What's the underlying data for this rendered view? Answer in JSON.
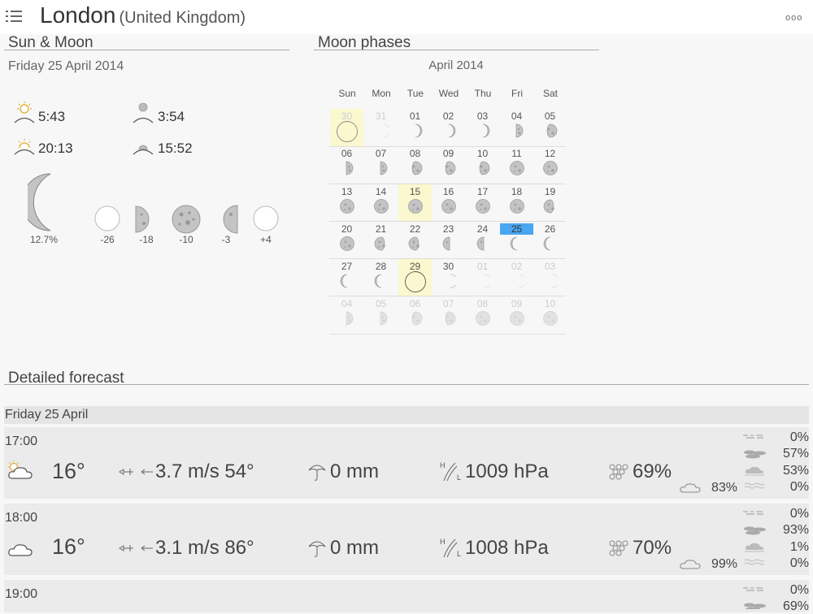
{
  "header": {
    "city": "London",
    "country": "(United Kingdom)",
    "more_label": "ooo"
  },
  "sun_moon": {
    "title": "Sun & Moon",
    "date": "Friday 25 April 2014",
    "sunrise": "5:43",
    "sunset": "20:13",
    "moonrise": "3:54",
    "moonset": "15:52",
    "illumination": "12.7%",
    "phase_offsets": [
      "-26",
      "-18",
      "-10",
      "-3",
      "+4"
    ]
  },
  "moon_phases": {
    "title": "Moon phases",
    "month": "April 2014",
    "weekdays": [
      "Sun",
      "Mon",
      "Tue",
      "Wed",
      "Thu",
      "Fri",
      "Sat"
    ],
    "weeks": [
      [
        "30",
        "31",
        "01",
        "02",
        "03",
        "04",
        "05"
      ],
      [
        "06",
        "07",
        "08",
        "09",
        "10",
        "11",
        "12"
      ],
      [
        "13",
        "14",
        "15",
        "16",
        "17",
        "18",
        "19"
      ],
      [
        "20",
        "21",
        "22",
        "23",
        "24",
        "25",
        "26"
      ],
      [
        "27",
        "28",
        "29",
        "30",
        "01",
        "02",
        "03"
      ],
      [
        "04",
        "05",
        "06",
        "07",
        "08",
        "09",
        "10"
      ]
    ],
    "today": "25"
  },
  "forecast": {
    "title": "Detailed forecast",
    "day_label": "Friday 25 April",
    "rows": [
      {
        "time": "17:00",
        "temp": "16°",
        "wind": "3.7 m/s 54°",
        "rain": "0 mm",
        "pressure": "1009 hPa",
        "humidity": "69%",
        "cloud_total": "83%",
        "clouds": [
          "0%",
          "57%",
          "53%",
          "0%"
        ],
        "icon": "sun-cloud-icon"
      },
      {
        "time": "18:00",
        "temp": "16°",
        "wind": "3.1 m/s 86°",
        "rain": "0 mm",
        "pressure": "1008 hPa",
        "humidity": "70%",
        "cloud_total": "99%",
        "clouds": [
          "0%",
          "93%",
          "1%",
          "0%"
        ],
        "icon": "cloud-icon"
      },
      {
        "time": "19:00",
        "clouds": [
          "0%",
          "69%"
        ]
      }
    ]
  },
  "colors": {
    "today_marker": "#49a6f0",
    "highlight": "#fbf8cf",
    "sun": "#f0b93a"
  }
}
